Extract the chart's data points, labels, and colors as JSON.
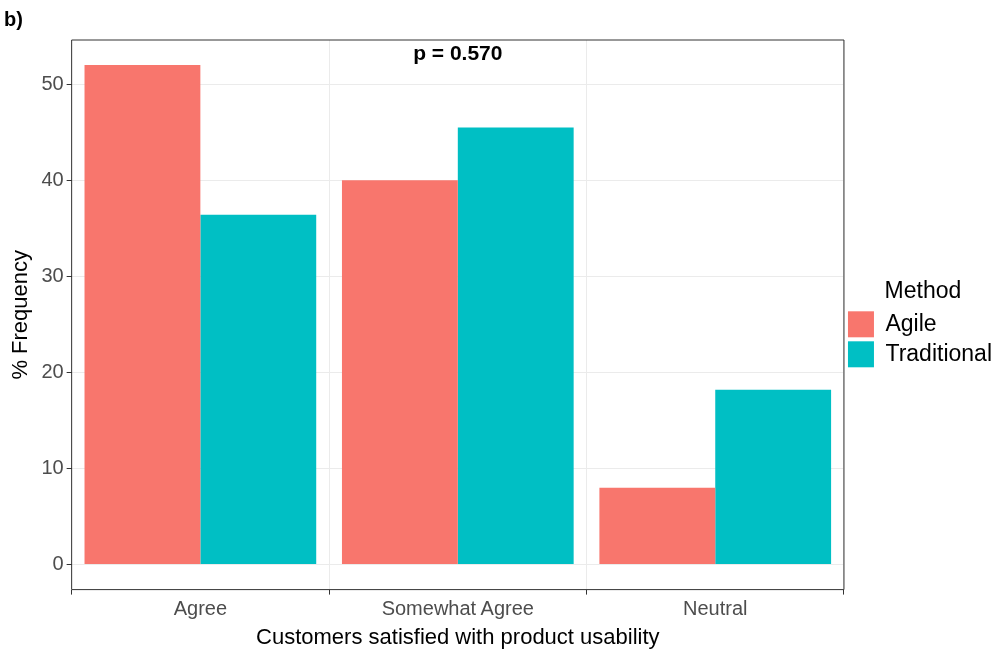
{
  "chart_data": {
    "type": "bar",
    "title": "b)",
    "xlabel": "Customers satisfied with product usability",
    "ylabel": "% Frequency",
    "legend_title": "Method",
    "annotations": [
      "p = 0.570"
    ],
    "categories": [
      "Agree",
      "Somewhat Agree",
      "Neutral"
    ],
    "series": [
      {
        "name": "Agile",
        "color": "#f8766d",
        "values": [
          52,
          40,
          8
        ]
      },
      {
        "name": "Traditional",
        "color": "#00bfc4",
        "values": [
          36.4,
          45.5,
          18.2
        ]
      }
    ],
    "ylim": [
      -2.6,
      54.6
    ],
    "yticks": [
      0,
      10,
      20,
      30,
      40,
      50
    ],
    "grid": true,
    "legend": "right"
  }
}
